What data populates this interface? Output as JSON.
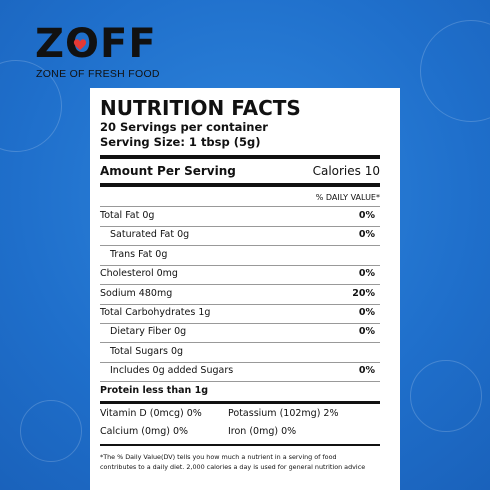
{
  "brand": {
    "name": "ZOFF",
    "tagline": "ZONE OF FRESH FOOD"
  },
  "label": {
    "title": "NUTRITION FACTS",
    "servings": "20 Servings per container",
    "serving_size": "Serving Size: 1 tbsp (5g)",
    "amount_heading": "Amount Per Serving",
    "calories": "Calories  10",
    "dv_heading": "% DAILY VALUE*",
    "rows": [
      {
        "label": "Total Fat  0g",
        "dv": "0%"
      },
      {
        "label": "Saturated Fat  0g",
        "dv": "0%"
      },
      {
        "label": "Trans Fat 0g"
      },
      {
        "label": "Cholesterol  0mg",
        "dv": "0%"
      },
      {
        "label": "Sodium 480mg",
        "dv": "20%"
      },
      {
        "label": "Total Carbohydrates  1g",
        "dv": "0%"
      },
      {
        "label": "Dietary Fiber  0g",
        "dv": "0%"
      },
      {
        "label": "Total Sugars  0g"
      },
      {
        "label": "Includes 0g added Sugars",
        "dv": "0%"
      },
      {
        "label": "Protein less than 1g"
      }
    ],
    "vitamins": [
      [
        "Vitamin D (0mcg) 0%",
        "Potassium (102mg) 2%"
      ],
      [
        "Calcium (0mg) 0%",
        "Iron (0mg) 0%"
      ]
    ],
    "footnote": [
      "*The % Daily Value(DV) tells you how much a nutrient in a serving of food",
      "contributes to a daily diet. 2,000 calories a day is used for general nutrition advice"
    ]
  }
}
